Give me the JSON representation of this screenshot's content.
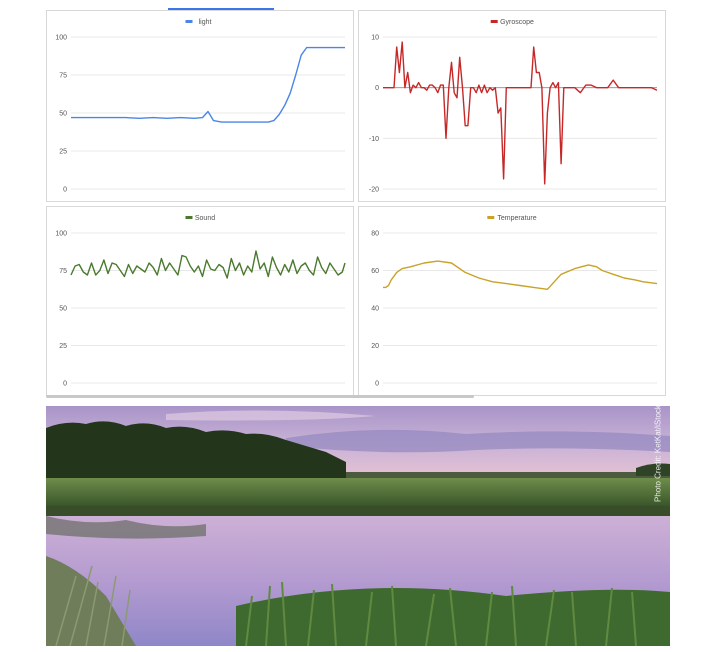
{
  "chart_data": [
    {
      "type": "line",
      "legend": "light",
      "legend_position": "top-center",
      "color": "#4a86e8",
      "ylim": [
        0,
        100
      ],
      "yticks": [
        0,
        25,
        50,
        75,
        100
      ],
      "grid": true,
      "x": [
        0,
        5,
        10,
        15,
        20,
        25,
        30,
        35,
        40,
        45,
        48,
        50,
        52,
        55,
        60,
        65,
        70,
        72,
        74,
        76,
        78,
        80,
        82,
        84,
        86,
        88,
        90,
        95,
        100
      ],
      "values": [
        47,
        47,
        47,
        47,
        47,
        46.5,
        47,
        46.5,
        47,
        46.5,
        47,
        51,
        45,
        44,
        44,
        44,
        44,
        44,
        45,
        49,
        55,
        63,
        75,
        88,
        93,
        93,
        93,
        93,
        93
      ]
    },
    {
      "type": "line",
      "legend": "Gyroscope",
      "legend_position": "top-center",
      "color": "#c62828",
      "ylim": [
        -20,
        10
      ],
      "yticks": [
        -20,
        -10,
        0,
        10
      ],
      "grid": true,
      "x": [
        0,
        4,
        5,
        6,
        7,
        8,
        9,
        10,
        11,
        12,
        13,
        14,
        15,
        16,
        17,
        18,
        19,
        20,
        21,
        22,
        23,
        24,
        25,
        26,
        27,
        28,
        29,
        30,
        31,
        32,
        33,
        34,
        35,
        36,
        37,
        38,
        39,
        40,
        41,
        42,
        43,
        44,
        45,
        46,
        47,
        48,
        49,
        50,
        51,
        52,
        53,
        54,
        55,
        56,
        57,
        58,
        59,
        60,
        61,
        62,
        63,
        64,
        65,
        66,
        67,
        68,
        69,
        70,
        72,
        74,
        76,
        78,
        80,
        82,
        84,
        86,
        88,
        90,
        92,
        94,
        96,
        98,
        100
      ],
      "values": [
        0,
        0,
        8,
        3,
        9,
        0,
        3,
        -1,
        0.5,
        0,
        1,
        0,
        0,
        -0.5,
        0.5,
        0.5,
        0,
        -1,
        0.5,
        0.5,
        -10,
        0,
        5,
        -1,
        -2,
        6,
        0,
        -7.5,
        -7.5,
        0,
        0,
        -1,
        0.5,
        -1,
        0.5,
        -1,
        0,
        -0.5,
        0,
        -5,
        -4,
        -18,
        0,
        0,
        0,
        0,
        0,
        0,
        0,
        0,
        0,
        0,
        8,
        3,
        3,
        0,
        -19,
        -5,
        0,
        1,
        0,
        1,
        -15,
        0,
        0,
        0,
        0,
        0,
        -1,
        0.5,
        0.5,
        0,
        0,
        0,
        1.5,
        0,
        0,
        0,
        0,
        0,
        0,
        0,
        -0.5
      ]
    },
    {
      "type": "line",
      "legend": "Sound",
      "legend_position": "top-center",
      "color": "#4a7a2e",
      "ylim": [
        0,
        100
      ],
      "yticks": [
        0,
        25,
        50,
        75,
        100
      ],
      "grid": true,
      "x": [
        0,
        1.5,
        3,
        4.5,
        6,
        7.5,
        9,
        10.5,
        12,
        13.5,
        15,
        16.5,
        18,
        19.5,
        21,
        22.5,
        24,
        25.5,
        27,
        28.5,
        30,
        31.5,
        33,
        34.5,
        36,
        37.5,
        39,
        40.5,
        42,
        43.5,
        45,
        46.5,
        48,
        49.5,
        51,
        52.5,
        54,
        55.5,
        57,
        58.5,
        60,
        61.5,
        63,
        64.5,
        66,
        67.5,
        69,
        70.5,
        72,
        73.5,
        75,
        76.5,
        78,
        79.5,
        81,
        82.5,
        84,
        85.5,
        87,
        88.5,
        90,
        91.5,
        93,
        94.5,
        96,
        97.5,
        99,
        100
      ],
      "values": [
        72,
        78,
        79,
        74,
        72,
        80,
        72,
        75,
        82,
        73,
        80,
        79,
        75,
        71,
        79,
        73,
        78,
        76,
        74,
        80,
        77,
        72,
        83,
        75,
        80,
        76,
        72,
        85,
        84,
        78,
        74,
        78,
        71,
        82,
        76,
        75,
        79,
        77,
        70,
        83,
        75,
        80,
        72,
        78,
        74,
        88,
        76,
        80,
        71,
        84,
        77,
        72,
        79,
        74,
        82,
        73,
        78,
        80,
        75,
        72,
        84,
        77,
        73,
        80,
        76,
        72,
        74,
        80
      ]
    },
    {
      "type": "line",
      "legend": "Temperature",
      "legend_position": "top-center",
      "color": "#c9a227",
      "ylim": [
        0,
        80
      ],
      "yticks": [
        0,
        20,
        40,
        60,
        80
      ],
      "grid": true,
      "x": [
        0,
        1,
        2,
        3,
        5,
        7,
        10,
        15,
        20,
        25,
        30,
        35,
        40,
        45,
        50,
        55,
        60,
        65,
        70,
        75,
        78,
        80,
        82,
        84,
        86,
        88,
        90,
        92,
        95,
        100
      ],
      "values": [
        51,
        51,
        52,
        55,
        59,
        61,
        62,
        64,
        65,
        64,
        59,
        56,
        54,
        53,
        52,
        51,
        50,
        58,
        61,
        63,
        62,
        60,
        59,
        58,
        57,
        56,
        55.5,
        55,
        54,
        53
      ]
    }
  ],
  "photo": {
    "credit": "Photo Credit: KetKat/iStock.com"
  },
  "colors": {
    "grid": "#e8e8e8",
    "axis": "#777777",
    "tab_accent": "#3b78e7",
    "sky_top": "#b9a3cd",
    "sky_bottom": "#e8c9d8"
  }
}
